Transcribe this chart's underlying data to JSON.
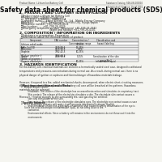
{
  "bg_color": "#f5f5f0",
  "header_left": "Product Name: Lithium Ion Battery Cell",
  "header_right": "Substance Catalog: SDS-LIB-000010\nEstablished / Revision: Dec.7.2010",
  "title": "Safety data sheet for chemical products (SDS)",
  "section1_title": "1. PRODUCT AND COMPANY IDENTIFICATION",
  "section1_lines": [
    "  ・Product name: Lithium Ion Battery Cell",
    "  ・Product code: Cylindrical-type cell",
    "       SY1865U, SY1865UL, SY1865ULA",
    "  ・Company name:    Sanyo Electric Co., Ltd., Mobile Energy Company",
    "  ・Address:          2001, Kamikosaka, Sumoto-City, Hyogo, Japan",
    "  ・Telephone number: +81-799-26-4111",
    "  ・Fax number:       +81-799-26-4129",
    "  ・Emergency telephone number (Afternoon) +81-799-26-3942",
    "                                     (Night and holiday) +81-799-26-4101"
  ],
  "section2_title": "2. COMPOSITION / INFORMATION ON INGREDIENTS",
  "section2_intro": "  ・Substance or preparation: Preparation",
  "section2_sub": "  ・Information about the chemical nature of product:",
  "table_headers": [
    "Component",
    "CAS number",
    "Concentration /\nConcentration range",
    "Classification and\nhazard labeling"
  ],
  "table_rows": [
    [
      "Lithium cobalt oxide\n(LiMn-Co)(O2)",
      "-",
      "30-50%",
      ""
    ],
    [
      "Iron",
      "7439-89-6",
      "15-25%",
      ""
    ],
    [
      "Aluminum",
      "7429-90-5",
      "2-5%",
      ""
    ],
    [
      "Graphite\n(Kish or graphite+)\n(Artificial graphite-)",
      "7782-42-5\n7782-44-2",
      "10-25%",
      ""
    ],
    [
      "Copper",
      "7440-50-8",
      "5-15%",
      "Sensitization of the skin\ngroup No.2"
    ],
    [
      "Organic electrolyte",
      "-",
      "10-25%",
      "Inflammable liquid"
    ]
  ],
  "section3_title": "3. HAZARDS IDENTIFICATION",
  "section3_text": "For this battery cell, chemical materials are stored in a hermetically sealed steel case, designed to withstand\ntemperatures and pressures-concentrations during normal use. As a result, during normal use, there is no\nphysical danger of ignition or explosion and thermal-danger of hazardous materials leakage.\n\nHowever, if exposed to a fire, added mechanical shocks, decomposed, when electric short-circuiting measures,\nthe gas release vent will be operated. The battery cell case will be breached at fire-patterns. Hazardous\nmaterials may be released.\n\nMoreover, if heated strongly by the surrounding fire, soot gas may be emitted.",
  "section3_effects_title": "  ・Most important hazard and effects:",
  "section3_effects": "       Human health effects:\n            Inhalation: The release of the electrolyte has an anaesthesia action and stimulates in respiratory tract.\n            Skin contact: The release of the electrolyte stimulates a skin. The electrolyte skin contact causes a\n            sore and stimulation on the skin.\n            Eye contact: The release of the electrolyte stimulates eyes. The electrolyte eye contact causes a sore\n            and stimulation on the eye. Especially, a substance that causes a strong inflammation of the eye is\n            contained.\n            Environmental effects: Since a battery cell remains in the environment, do not throw out it into the\n            environment.",
  "section3_specific_title": "  ・Specific hazards:",
  "section3_specific": "       If the electrolyte contacts with water, it will generate detrimental hydrogen fluoride.\n       Since the used electrolyte is inflammable liquid, do not bring close to fire."
}
